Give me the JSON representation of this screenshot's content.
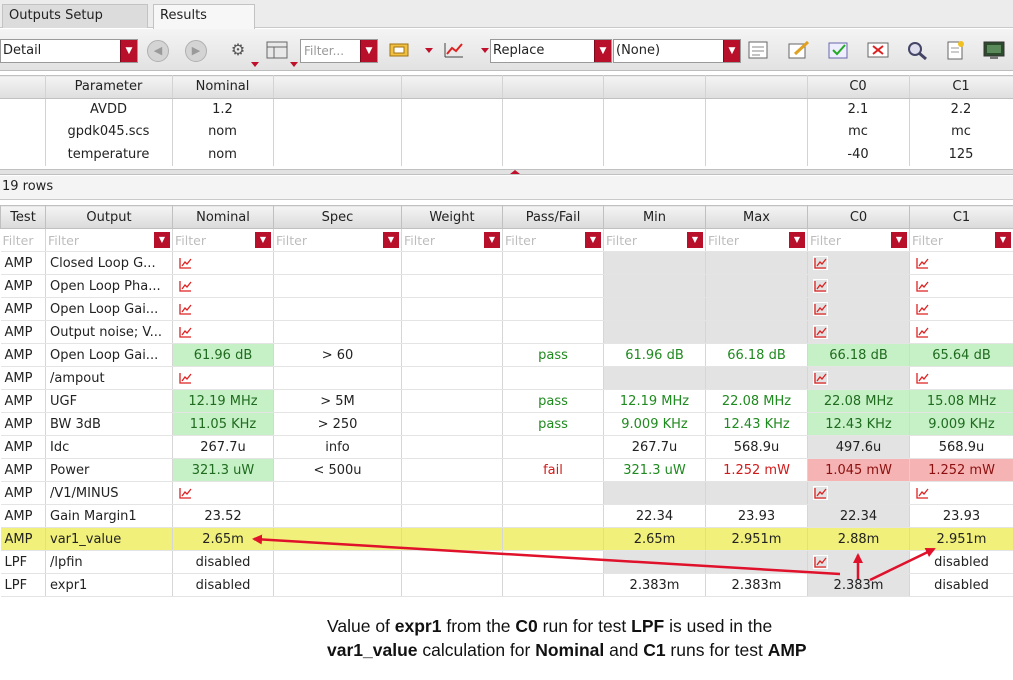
{
  "tabs": [
    {
      "label": "Outputs Setup",
      "active": false
    },
    {
      "label": "Results",
      "active": true
    }
  ],
  "toolbar": {
    "view_mode": "Detail",
    "filter_placeholder": "Filter...",
    "replace_mode": "Replace",
    "history": "(None)"
  },
  "param_table": {
    "headers": [
      "Parameter",
      "Nominal",
      "C0",
      "C1"
    ],
    "rows": [
      {
        "parameter": "AVDD",
        "nominal": "1.2",
        "c0": "2.1",
        "c1": "2.2"
      },
      {
        "parameter": "gpdk045.scs",
        "nominal": "nom",
        "c0": "mc",
        "c1": "mc"
      },
      {
        "parameter": "temperature",
        "nominal": "nom",
        "c0": "-40",
        "c1": "125"
      }
    ]
  },
  "row_count": "19 rows",
  "results": {
    "headers": [
      "Test",
      "Output",
      "Nominal",
      "Spec",
      "Weight",
      "Pass/Fail",
      "Min",
      "Max",
      "C0",
      "C1"
    ],
    "filter_row": {
      "test": "Filter",
      "other": "Filter"
    },
    "rows": [
      {
        "test": "AMP",
        "output": "Closed Loop G...",
        "nominal": "wave",
        "spec": "",
        "weight": "",
        "pass_fail": "",
        "min": "",
        "max": "",
        "c0": "wave",
        "c1": "wave"
      },
      {
        "test": "AMP",
        "output": "Open Loop Pha...",
        "nominal": "wave",
        "spec": "",
        "weight": "",
        "pass_fail": "",
        "min": "",
        "max": "",
        "c0": "wave",
        "c1": "wave"
      },
      {
        "test": "AMP",
        "output": "Open Loop Gai...",
        "nominal": "wave",
        "spec": "",
        "weight": "",
        "pass_fail": "",
        "min": "",
        "max": "",
        "c0": "wave",
        "c1": "wave"
      },
      {
        "test": "AMP",
        "output": "Output noise; V...",
        "nominal": "wave",
        "spec": "",
        "weight": "",
        "pass_fail": "",
        "min": "",
        "max": "",
        "c0": "wave",
        "c1": "wave"
      },
      {
        "test": "AMP",
        "output": "Open Loop Gai...",
        "nominal": "61.96 dB",
        "spec": "> 60",
        "weight": "",
        "pass_fail": "pass",
        "min": "61.96 dB",
        "max": "66.18 dB",
        "c0": "66.18 dB",
        "c1": "65.64 dB"
      },
      {
        "test": "AMP",
        "output": "/ampout",
        "nominal": "wave",
        "spec": "",
        "weight": "",
        "pass_fail": "",
        "min": "",
        "max": "",
        "c0": "wave",
        "c1": "wave"
      },
      {
        "test": "AMP",
        "output": "UGF",
        "nominal": "12.19 MHz",
        "spec": "> 5M",
        "weight": "",
        "pass_fail": "pass",
        "min": "12.19 MHz",
        "max": "22.08 MHz",
        "c0": "22.08 MHz",
        "c1": "15.08 MHz"
      },
      {
        "test": "AMP",
        "output": "BW 3dB",
        "nominal": "11.05 KHz",
        "spec": "> 250",
        "weight": "",
        "pass_fail": "pass",
        "min": "9.009 KHz",
        "max": "12.43 KHz",
        "c0": "12.43 KHz",
        "c1": "9.009 KHz"
      },
      {
        "test": "AMP",
        "output": "Idc",
        "nominal": "267.7u",
        "spec": "info",
        "weight": "",
        "pass_fail": "",
        "min": "267.7u",
        "max": "568.9u",
        "c0": "497.6u",
        "c1": "568.9u"
      },
      {
        "test": "AMP",
        "output": "Power",
        "nominal": "321.3 uW",
        "spec": "< 500u",
        "weight": "",
        "pass_fail": "fail",
        "min": "321.3 uW",
        "max": "1.252 mW",
        "c0": "1.045 mW",
        "c1": "1.252 mW"
      },
      {
        "test": "AMP",
        "output": "/V1/MINUS",
        "nominal": "wave",
        "spec": "",
        "weight": "",
        "pass_fail": "",
        "min": "",
        "max": "",
        "c0": "wave",
        "c1": "wave"
      },
      {
        "test": "AMP",
        "output": "Gain Margin1",
        "nominal": "23.52",
        "spec": "",
        "weight": "",
        "pass_fail": "",
        "min": "22.34",
        "max": "23.93",
        "c0": "22.34",
        "c1": "23.93"
      },
      {
        "test": "AMP",
        "output": "var1_value",
        "nominal": "2.65m",
        "spec": "",
        "weight": "",
        "pass_fail": "",
        "min": "2.65m",
        "max": "2.951m",
        "c0": "2.88m",
        "c1": "2.951m"
      },
      {
        "test": "LPF",
        "output": "/lpfin",
        "nominal": "disabled",
        "spec": "",
        "weight": "",
        "pass_fail": "",
        "min": "",
        "max": "",
        "c0": "wave",
        "c1": "disabled"
      },
      {
        "test": "LPF",
        "output": "expr1",
        "nominal": "disabled",
        "spec": "",
        "weight": "",
        "pass_fail": "",
        "min": "2.383m",
        "max": "2.383m",
        "c0": "2.383m",
        "c1": "disabled"
      }
    ]
  },
  "caption": {
    "line1": [
      "Value of ",
      "expr1",
      " from the ",
      "C0",
      " run for test ",
      "LPF",
      " is used in the"
    ],
    "line2": [
      "var1_value",
      " calculation for ",
      "Nominal",
      " and ",
      "C1",
      " runs for test ",
      "AMP"
    ]
  },
  "colors": {
    "pass_fill": "#c6f1c6",
    "fail_fill": "#f6b3b3",
    "highlight_row": "#f0f07a",
    "annotation_arrow": "#e0112b",
    "dropdown_button": "#b8102b"
  }
}
